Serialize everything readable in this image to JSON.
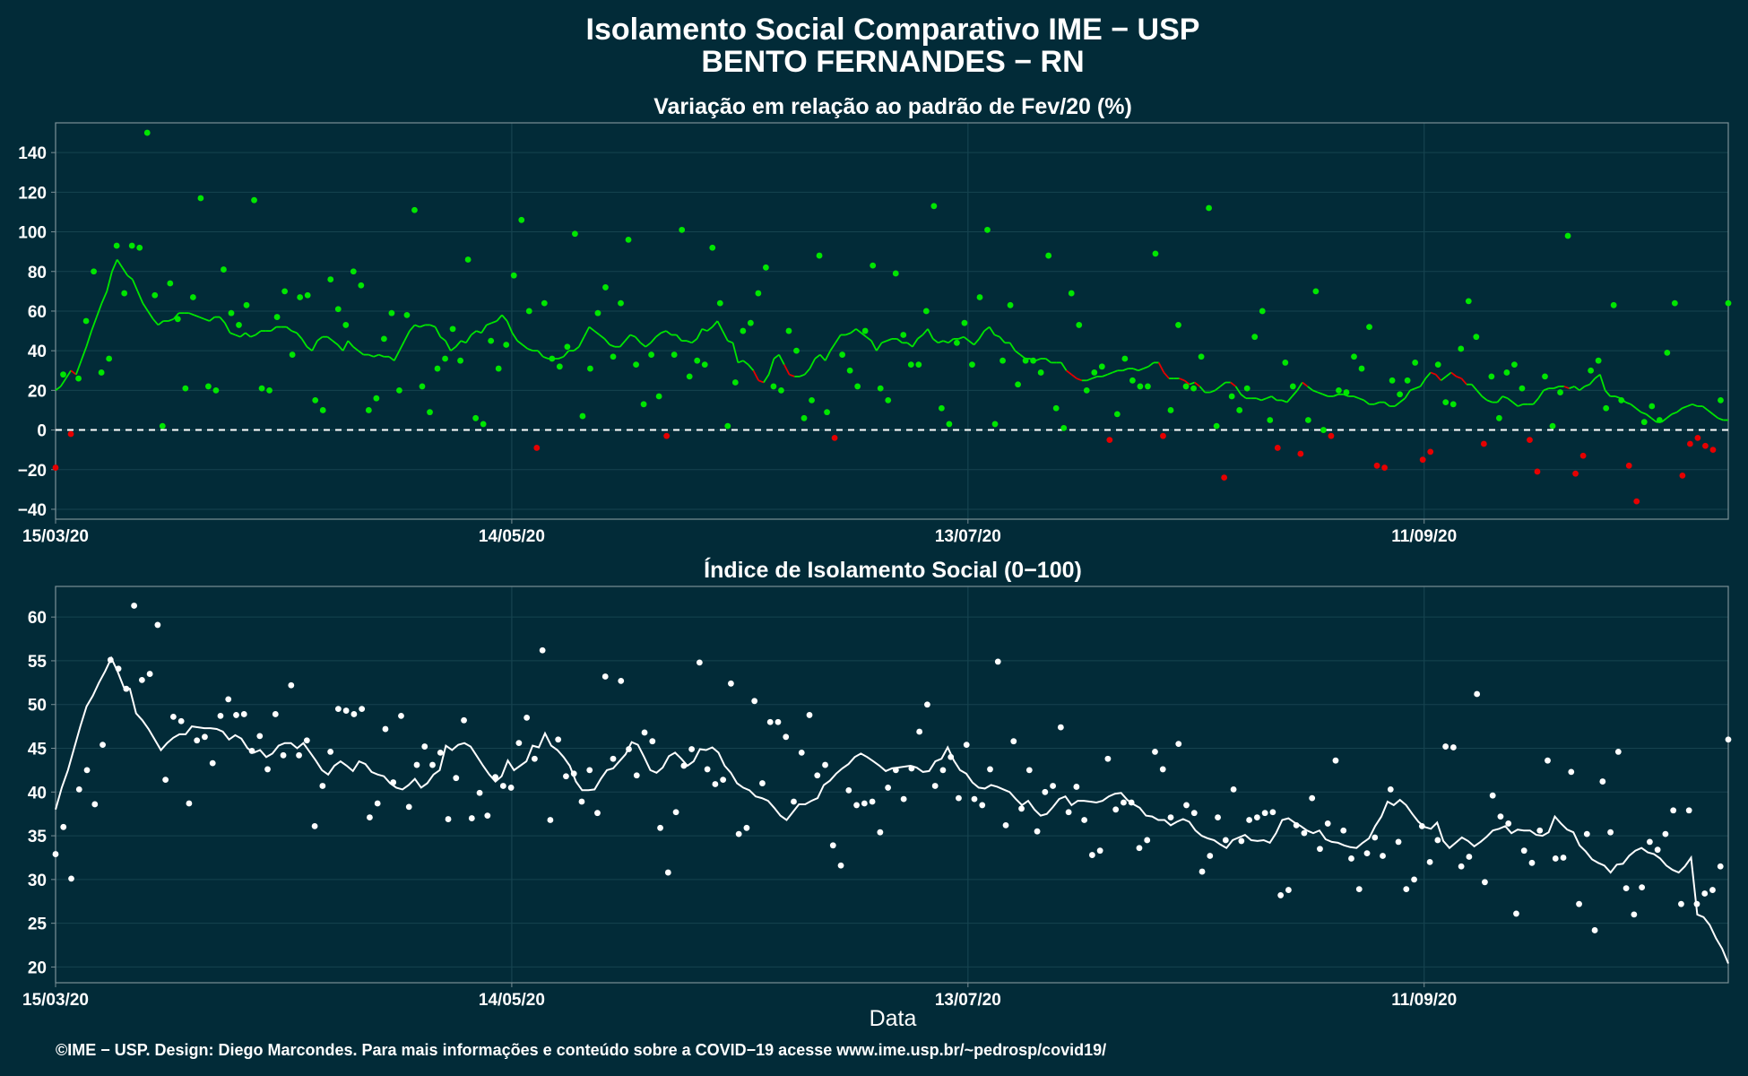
{
  "header": {
    "title_line1": "Isolamento Social Comparativo IME − USP",
    "title_line2": "BENTO FERNANDES − RN"
  },
  "footer": {
    "credit": "©IME − USP. Design: Diego Marcondes. Para mais informações e conteúdo sobre a COVID−19 acesse www.ime.usp.br/~pedrosp/covid19/"
  },
  "colors": {
    "background": "#022b38",
    "panel_border": "#7a8f96",
    "grid": "#16434f",
    "positive": "#00e600",
    "negative": "#e60000",
    "index": "#ffffff"
  },
  "chart_data": [
    {
      "type": "scatter",
      "title": "Variação em relação ao padrão de Fev/20 (%)",
      "xlabel": "",
      "ylabel": "",
      "x_start": "15/03/20",
      "x_end": "21/10/20",
      "xticks": [
        "15/03/20",
        "14/05/20",
        "13/07/20",
        "11/09/20"
      ],
      "yticks": [
        -40,
        -20,
        0,
        20,
        40,
        60,
        80,
        100,
        120,
        140
      ],
      "ylim": [
        -45,
        155
      ],
      "reference_line": 0,
      "grid": true,
      "series": [
        {
          "values": [
            -19,
            28,
            -2,
            26,
            55,
            80,
            29,
            36,
            93,
            69,
            93,
            92,
            150,
            68,
            2,
            74,
            56,
            21,
            67,
            117,
            22,
            20,
            81,
            59,
            53,
            63,
            116,
            21,
            20,
            57,
            70,
            38,
            67,
            68,
            15,
            10,
            76,
            61,
            53,
            80,
            73,
            10,
            16,
            46,
            59,
            20,
            58,
            111,
            22,
            9,
            31,
            36,
            51,
            35,
            86,
            6,
            3,
            45,
            31,
            43,
            78,
            106,
            60,
            -9,
            64,
            36,
            32,
            42,
            99,
            7,
            31,
            59,
            72,
            37,
            64,
            96,
            33,
            13,
            38,
            17,
            -3,
            38,
            101,
            27,
            35,
            33,
            92,
            64,
            2,
            24,
            50,
            54,
            69,
            82,
            22,
            20,
            50,
            40,
            6,
            15,
            88,
            9,
            -4,
            38,
            30,
            22,
            50,
            83,
            21,
            15,
            79,
            48,
            33,
            33,
            60,
            113,
            11,
            3,
            44,
            54,
            33,
            67,
            101,
            3,
            35,
            63,
            23,
            35,
            35,
            29,
            88,
            11,
            1,
            69,
            53,
            20,
            29,
            32,
            -5,
            8,
            36,
            25,
            22,
            22,
            89,
            -3,
            10,
            53,
            22,
            21,
            37,
            112,
            2,
            -24,
            17,
            10,
            21,
            47,
            60,
            5,
            -9,
            34,
            22,
            -12,
            5,
            70,
            0,
            -3,
            20,
            19,
            37,
            31,
            52,
            -18,
            -19,
            25,
            18,
            25,
            34,
            -15,
            -11,
            33,
            14,
            13,
            41,
            65,
            47,
            -7,
            27,
            6,
            29,
            33,
            21,
            -5,
            -21,
            27,
            2,
            19,
            98,
            -22,
            -13,
            30,
            35,
            11,
            63,
            15,
            -18,
            -36,
            4,
            12,
            5,
            39,
            64,
            -23,
            -7,
            -4,
            -8,
            -10,
            15,
            64
          ]
        },
        {
          "name_is_moving_average": true,
          "values": [
            20,
            22,
            26,
            30,
            28,
            35,
            42,
            50,
            57,
            64,
            70,
            80,
            86,
            82,
            78,
            76,
            70,
            64,
            60,
            56,
            53,
            55,
            55,
            56,
            59,
            59,
            59,
            58,
            57,
            56,
            55,
            57,
            57,
            54,
            49,
            48,
            47,
            49,
            47,
            48,
            50,
            50,
            50,
            52,
            52,
            52,
            50,
            49,
            46,
            42,
            40,
            45,
            47,
            47,
            45,
            43,
            40,
            45,
            42,
            40,
            38,
            38,
            37,
            38,
            37,
            37,
            35,
            40,
            45,
            50,
            53,
            52,
            53,
            53,
            52,
            47,
            45,
            40,
            42,
            45,
            44,
            48,
            50,
            49,
            53,
            54,
            55,
            58,
            55,
            49,
            45,
            43,
            41,
            40,
            40,
            37,
            36,
            36,
            36,
            37,
            40,
            40,
            42,
            47,
            52,
            50,
            48,
            46,
            43,
            42,
            42,
            45,
            48,
            47,
            44,
            42,
            44,
            47,
            49,
            50,
            48,
            48,
            45,
            45,
            44,
            46,
            51,
            50,
            52,
            55,
            50,
            45,
            44,
            34,
            35,
            33,
            30,
            25,
            24,
            28,
            36,
            38,
            33,
            28,
            27,
            27,
            28,
            31,
            36,
            38,
            35,
            40,
            44,
            48,
            48,
            49,
            51,
            49,
            47,
            45,
            40,
            44,
            45,
            46,
            46,
            44,
            44,
            42,
            46,
            48,
            51,
            46,
            44,
            45,
            44,
            46,
            46,
            47,
            45,
            43,
            46,
            50,
            52,
            48,
            47,
            44,
            44,
            40,
            38,
            36,
            36,
            35,
            36,
            36,
            34,
            34,
            34,
            30,
            28,
            26,
            25,
            25,
            26,
            27,
            27,
            28,
            29,
            30,
            30,
            31,
            31,
            30,
            31,
            32,
            34,
            34,
            29,
            26,
            26,
            26,
            25,
            23,
            24,
            22,
            19,
            19,
            20,
            22,
            24,
            24,
            22,
            18,
            16,
            16,
            16,
            15,
            16,
            17,
            15,
            15,
            14,
            17,
            20,
            24,
            22,
            20,
            19,
            18,
            17,
            17,
            18,
            18,
            17,
            17,
            16,
            15,
            13,
            13,
            14,
            14,
            12,
            12,
            14,
            16,
            20,
            21,
            22,
            26,
            29,
            28,
            25,
            27,
            29,
            27,
            26,
            23,
            23,
            20,
            17,
            15,
            14,
            14,
            17,
            16,
            14,
            12,
            13,
            13,
            13,
            16,
            20,
            21,
            21,
            22,
            22,
            21,
            22,
            20,
            22,
            23,
            26,
            28,
            20,
            17,
            17,
            16,
            14,
            13,
            11,
            9,
            8,
            6,
            4,
            4,
            6,
            8,
            9,
            11,
            12,
            13,
            12,
            12,
            10,
            8,
            6,
            5,
            5
          ]
        }
      ]
    },
    {
      "type": "scatter",
      "title": "Índice de Isolamento Social (0−100)",
      "xlabel": "Data",
      "ylabel": "",
      "x_start": "15/03/20",
      "x_end": "21/10/20",
      "xticks": [
        "15/03/20",
        "14/05/20",
        "13/07/20",
        "11/09/20"
      ],
      "yticks": [
        20,
        25,
        30,
        35,
        40,
        45,
        50,
        55,
        60
      ],
      "ylim": [
        18.2,
        63.5
      ],
      "grid": true,
      "series": [
        {
          "values": [
            32.9,
            36,
            30.1,
            40.3,
            42.5,
            38.6,
            45.4,
            55.1,
            54.1,
            51.8,
            61.3,
            52.8,
            53.5,
            59.1,
            41.4,
            48.6,
            48.1,
            38.7,
            45.9,
            46.3,
            43.3,
            48.7,
            50.6,
            48.8,
            48.9,
            44.7,
            46.4,
            42.6,
            48.9,
            44.2,
            52.2,
            44.2,
            45.9,
            36.1,
            40.7,
            44.6,
            49.5,
            49.3,
            48.9,
            49.5,
            37.1,
            38.7,
            47.2,
            41.1,
            48.7,
            38.3,
            43.1,
            45.2,
            43.1,
            44.5,
            36.9,
            41.6,
            48.2,
            37,
            39.9,
            37.3,
            41.7,
            40.7,
            40.5,
            45.6,
            48.5,
            43.8,
            56.2,
            36.8,
            46,
            41.8,
            42.1,
            38.9,
            42.5,
            37.6,
            53.2,
            43.8,
            52.7,
            44.9,
            41.9,
            46.8,
            45.8,
            35.9,
            30.8,
            37.7,
            43,
            44.9,
            54.8,
            42.6,
            40.9,
            41.4,
            52.4,
            35.2,
            35.9,
            50.4,
            41,
            48,
            48,
            46.3,
            38.9,
            44.5,
            48.8,
            41.9,
            43.1,
            33.9,
            31.6,
            40.2,
            38.5,
            38.7,
            38.9,
            35.4,
            40.5,
            42.5,
            39.2,
            42.7,
            46.9,
            50,
            40.7,
            42.5,
            44,
            39.3,
            45.4,
            39.2,
            38.5,
            42.6,
            54.9,
            36.2,
            45.8,
            38.1,
            42.5,
            35.5,
            40,
            40.7,
            47.4,
            37.7,
            40.6,
            36.8,
            32.8,
            33.3,
            43.8,
            38,
            38.8,
            38.8,
            33.6,
            34.5,
            44.6,
            42.6,
            37.1,
            45.5,
            38.5,
            37.6,
            30.9,
            32.7,
            37.1,
            34.5,
            40.3,
            34.4,
            36.8,
            37.1,
            37.6,
            37.7,
            28.2,
            28.8,
            36.2,
            35.3,
            39.3,
            33.5,
            36.4,
            43.6,
            35.6,
            32.4,
            28.9,
            33,
            34.8,
            32.7,
            40.3,
            34.3,
            28.9,
            30,
            36.1,
            32,
            34.5,
            45.2,
            45.1,
            31.5,
            32.6,
            51.2,
            29.7,
            39.6,
            37.2,
            36.4,
            26.1,
            33.3,
            31.9,
            35.6,
            43.6,
            32.4,
            32.5,
            42.3,
            27.2,
            35.2,
            24.2,
            41.2,
            35.4,
            44.6,
            29,
            26,
            29.1,
            34.3,
            33.4,
            35.2,
            37.9,
            27.2,
            37.9,
            27.2,
            28.4,
            28.8,
            31.5,
            46
          ]
        },
        {
          "name_is_moving_average": true,
          "values": [
            38,
            40.5,
            42.5,
            45,
            47.5,
            49.8,
            51,
            52.5,
            53.8,
            55.3,
            53.8,
            52,
            51.8,
            49,
            48.2,
            47.2,
            46,
            44.8,
            45.6,
            46.2,
            46.6,
            46.6,
            47.5,
            47.4,
            47.3,
            47.3,
            47.2,
            46.9,
            46,
            46.5,
            46.1,
            45,
            44.5,
            44.8,
            44,
            44.4,
            45.3,
            45.6,
            45.6,
            45,
            45.6,
            44.6,
            43.6,
            42.5,
            42,
            43,
            43.5,
            43,
            42.4,
            43.5,
            43.2,
            42.3,
            42,
            41.8,
            41,
            40.5,
            40.3,
            40.8,
            41.5,
            40.5,
            41,
            42,
            42.5,
            45.3,
            44.8,
            45.4,
            45.6,
            45.2,
            44.1,
            43,
            42,
            41.2,
            41.8,
            43.6,
            42.5,
            43,
            43.5,
            45.3,
            45.1,
            46.7,
            45.3,
            44.8,
            44,
            43,
            41.2,
            40.2,
            40.2,
            40.3,
            41.5,
            42.5,
            42.7,
            43.5,
            44.3,
            45.7,
            45.4,
            44,
            42.5,
            42.2,
            42.8,
            44.1,
            44.5,
            43.8,
            43,
            43.5,
            44.9,
            44.8,
            45.1,
            44.5,
            43,
            42.2,
            41,
            40.5,
            40.2,
            39.5,
            39.3,
            39,
            38.2,
            37.3,
            36.8,
            37.7,
            38.6,
            38.6,
            39,
            39.3,
            40.8,
            41.3,
            42.1,
            42.7,
            43.2,
            44,
            44.4,
            44,
            43.5,
            43,
            42.4,
            42.7,
            42.8,
            42.9,
            43,
            42.8,
            42.3,
            42.4,
            43.5,
            43.8,
            45.1,
            43.6,
            42.5,
            42.1,
            41.1,
            40.5,
            40.4,
            40.8,
            40.6,
            40.3,
            40,
            39.2,
            38.5,
            39,
            38,
            37.3,
            37.5,
            38.3,
            39.2,
            39.5,
            38.5,
            39,
            39,
            38.9,
            38.8,
            39,
            39.5,
            39.8,
            39.9,
            39.1,
            38.6,
            38.2,
            37.3,
            37.2,
            36.8,
            36.8,
            36.2,
            36.6,
            36.9,
            36.6,
            35.6,
            35,
            34.7,
            34.5,
            34,
            33.6,
            34.5,
            34.8,
            35.1,
            34.5,
            34.4,
            34.5,
            34.2,
            35.3,
            36.8,
            37,
            36.5,
            36.1,
            35.6,
            35.3,
            35.6,
            34.6,
            34.3,
            34.2,
            33.9,
            33.7,
            33.6,
            34.2,
            34.7,
            36.1,
            37.2,
            38.9,
            38.5,
            39.1,
            38.5,
            37.5,
            36.6,
            36,
            35.8,
            36.5,
            34.4,
            33.6,
            34.2,
            34.8,
            34.4,
            33.8,
            34.3,
            34.9,
            35.6,
            35.8,
            36.1,
            35.3,
            35.7,
            35.6,
            35.6,
            35.1,
            35,
            35.4,
            37.2,
            36.4,
            35.7,
            35.4,
            33.9,
            33.2,
            32.3,
            31.9,
            31.6,
            30.8,
            31.7,
            31.8,
            32.7,
            33.3,
            33.6,
            33.1,
            32.9,
            32.4,
            31.6,
            31.1,
            30.8,
            31.5,
            32.5,
            26,
            25.7,
            24.8,
            23.3,
            22.1,
            20.4
          ]
        }
      ]
    }
  ]
}
